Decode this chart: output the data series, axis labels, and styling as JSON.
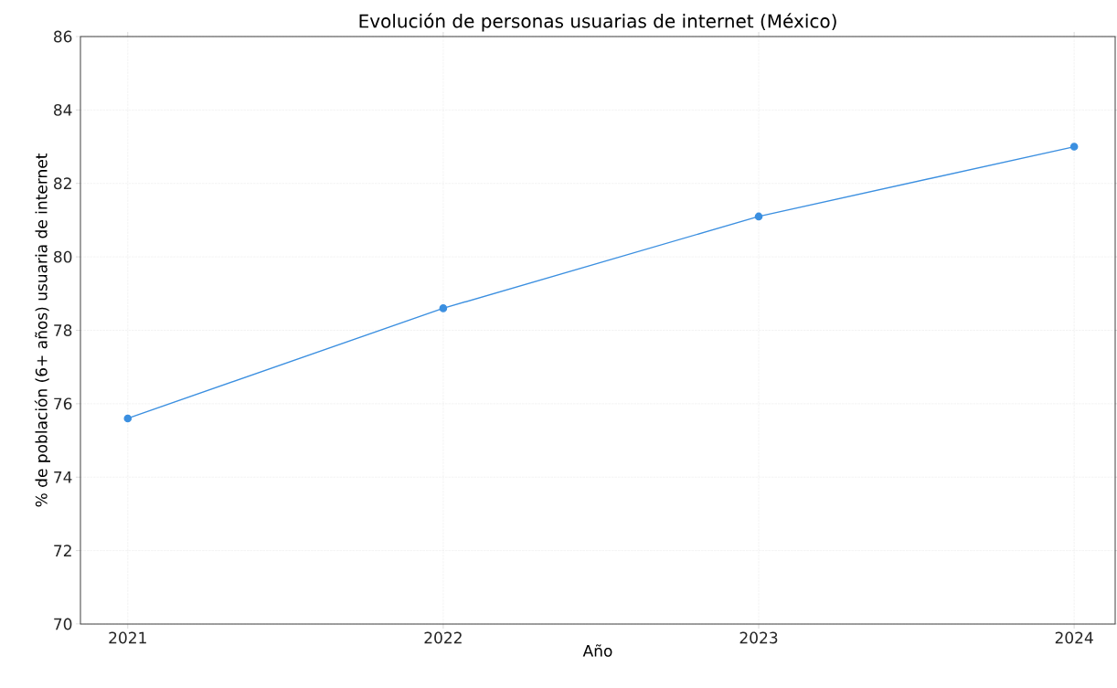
{
  "chart_data": {
    "type": "line",
    "title": "Evolución de personas usuarias de internet (México)",
    "xlabel": "Año",
    "ylabel": "% de población (6+ años) usuaria de internet",
    "x": [
      2021,
      2022,
      2023,
      2024
    ],
    "series": [
      {
        "color": "#3b8fe0",
        "values": [
          75.6,
          78.6,
          81.1,
          83.0
        ]
      }
    ],
    "xlim": [
      2020.85,
      2024.13
    ],
    "xticks": [
      2021,
      2022,
      2023,
      2024
    ],
    "ylim": [
      70,
      86
    ],
    "yticks": [
      70,
      72,
      74,
      76,
      78,
      80,
      82,
      84,
      86
    ],
    "grid": true,
    "marker": "circle",
    "line_style": "solid"
  }
}
